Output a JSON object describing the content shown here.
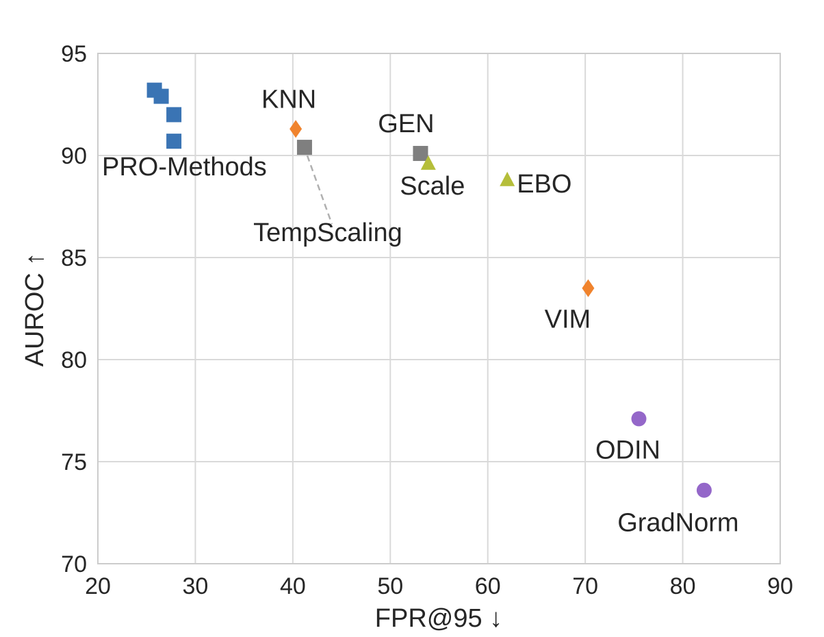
{
  "chart_data": {
    "type": "scatter",
    "xlabel": "FPR@95 ↓",
    "ylabel": "AUROC ↑",
    "xlim": [
      20,
      90
    ],
    "ylim": [
      70,
      95
    ],
    "xticks": [
      "20",
      "30",
      "40",
      "50",
      "60",
      "70",
      "80",
      "90"
    ],
    "yticks": [
      "70",
      "75",
      "80",
      "85",
      "90",
      "95"
    ],
    "grid": true,
    "legend": "none",
    "colors": {
      "blue": "#3a74b4",
      "orange": "#f0832d",
      "gray": "#7f7f7f",
      "olive": "#b5be3a",
      "purple": "#9467c9"
    },
    "groups": [
      {
        "label": "PRO-Methods",
        "marker": "square",
        "color": "blue",
        "points": [
          {
            "x": 25.8,
            "y": 93.2
          },
          {
            "x": 26.5,
            "y": 92.9
          },
          {
            "x": 27.8,
            "y": 92.0
          },
          {
            "x": 27.8,
            "y": 90.7
          }
        ]
      },
      {
        "label": "KNN",
        "marker": "diamond",
        "color": "orange",
        "points": [
          {
            "x": 40.3,
            "y": 91.3
          }
        ]
      },
      {
        "label": "TempScaling",
        "marker": "square",
        "color": "gray",
        "points": [
          {
            "x": 41.2,
            "y": 90.4
          }
        ]
      },
      {
        "label": "GEN",
        "marker": "square",
        "color": "gray",
        "points": [
          {
            "x": 53.1,
            "y": 90.1
          }
        ]
      },
      {
        "label": "Scale",
        "marker": "triangle",
        "color": "olive",
        "points": [
          {
            "x": 53.9,
            "y": 89.6
          }
        ]
      },
      {
        "label": "EBO",
        "marker": "triangle",
        "color": "olive",
        "points": [
          {
            "x": 62.0,
            "y": 88.8
          }
        ]
      },
      {
        "label": "VIM",
        "marker": "diamond",
        "color": "orange",
        "points": [
          {
            "x": 70.3,
            "y": 83.5
          }
        ]
      },
      {
        "label": "ODIN",
        "marker": "circle",
        "color": "purple",
        "points": [
          {
            "x": 75.5,
            "y": 77.1
          }
        ]
      },
      {
        "label": "GradNorm",
        "marker": "circle",
        "color": "purple",
        "points": [
          {
            "x": 82.2,
            "y": 73.6
          }
        ]
      }
    ]
  }
}
